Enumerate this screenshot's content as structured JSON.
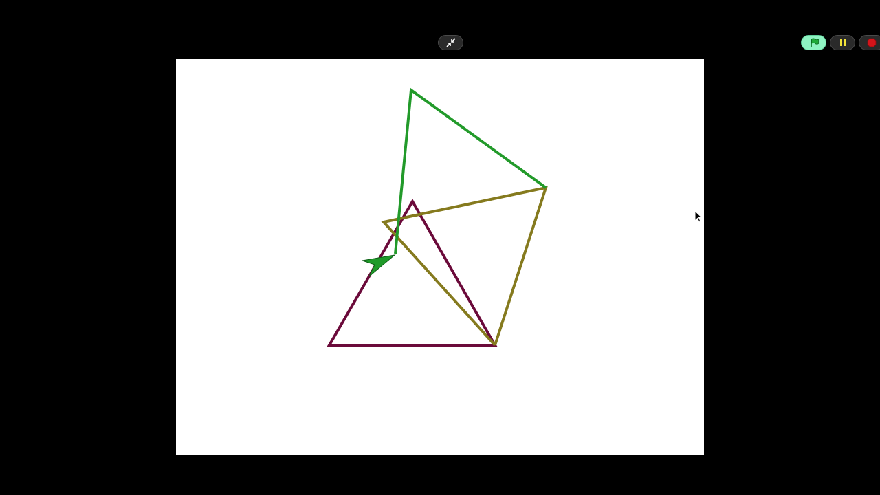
{
  "icons": {
    "unfullscreen": "unfullscreen-icon",
    "green_flag": "green-flag-icon",
    "pause": "pause-icon",
    "stop": "stop-icon",
    "sprite": "arrow-sprite",
    "cursor": "mouse-pointer-icon"
  },
  "colors": {
    "background": "#000000",
    "stage": "#ffffff",
    "green_flag_button": "#8ef3c2",
    "green_flag": "#1faa3a",
    "pause": "#f2e33a",
    "stop": "#d4141a",
    "triangle_stroke": "#6b0a3a",
    "olive_stroke": "#857a1e",
    "green_stroke": "#229a2a",
    "sprite_fill": "#1f9a2a"
  }
}
